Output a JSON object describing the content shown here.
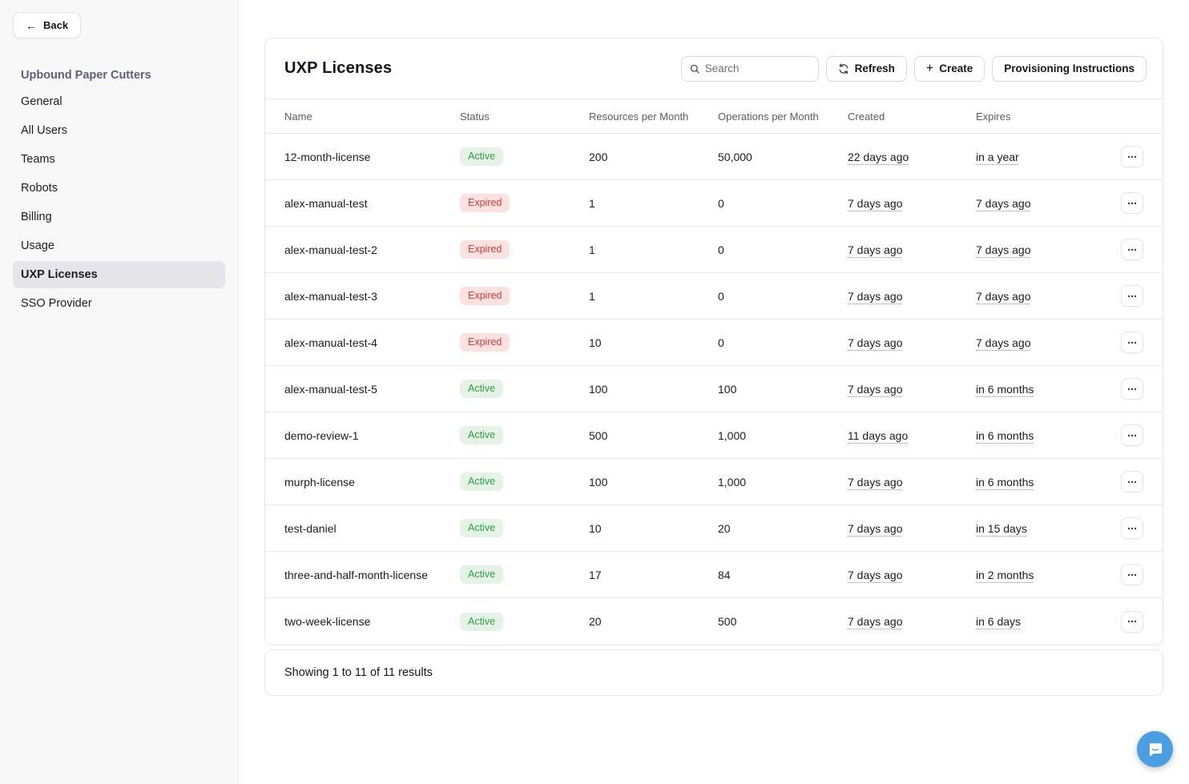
{
  "sidebar": {
    "back_label": "Back",
    "org_name": "Upbound Paper Cutters",
    "items": [
      {
        "label": "General",
        "active": false
      },
      {
        "label": "All Users",
        "active": false
      },
      {
        "label": "Teams",
        "active": false
      },
      {
        "label": "Robots",
        "active": false
      },
      {
        "label": "Billing",
        "active": false
      },
      {
        "label": "Usage",
        "active": false
      },
      {
        "label": "UXP Licenses",
        "active": true
      },
      {
        "label": "SSO Provider",
        "active": false
      }
    ]
  },
  "header": {
    "title": "UXP Licenses",
    "search_placeholder": "Search",
    "refresh_label": "Refresh",
    "create_label": "Create",
    "provisioning_label": "Provisioning Instructions"
  },
  "table": {
    "columns": [
      "Name",
      "Status",
      "Resources per Month",
      "Operations per Month",
      "Created",
      "Expires"
    ],
    "rows": [
      {
        "name": "12-month-license",
        "status": "Active",
        "resources": "200",
        "operations": "50,000",
        "created": "22 days ago",
        "expires": "in a year"
      },
      {
        "name": "alex-manual-test",
        "status": "Expired",
        "resources": "1",
        "operations": "0",
        "created": "7 days ago",
        "expires": "7 days ago"
      },
      {
        "name": "alex-manual-test-2",
        "status": "Expired",
        "resources": "1",
        "operations": "0",
        "created": "7 days ago",
        "expires": "7 days ago"
      },
      {
        "name": "alex-manual-test-3",
        "status": "Expired",
        "resources": "1",
        "operations": "0",
        "created": "7 days ago",
        "expires": "7 days ago"
      },
      {
        "name": "alex-manual-test-4",
        "status": "Expired",
        "resources": "10",
        "operations": "0",
        "created": "7 days ago",
        "expires": "7 days ago"
      },
      {
        "name": "alex-manual-test-5",
        "status": "Active",
        "resources": "100",
        "operations": "100",
        "created": "7 days ago",
        "expires": "in 6 months"
      },
      {
        "name": "demo-review-1",
        "status": "Active",
        "resources": "500",
        "operations": "1,000",
        "created": "11 days ago",
        "expires": "in 6 months"
      },
      {
        "name": "murph-license",
        "status": "Active",
        "resources": "100",
        "operations": "1,000",
        "created": "7 days ago",
        "expires": "in 6 months"
      },
      {
        "name": "test-daniel",
        "status": "Active",
        "resources": "10",
        "operations": "20",
        "created": "7 days ago",
        "expires": "in 15 days"
      },
      {
        "name": "three-and-half-month-license",
        "status": "Active",
        "resources": "17",
        "operations": "84",
        "created": "7 days ago",
        "expires": "in 2 months"
      },
      {
        "name": "two-week-license",
        "status": "Active",
        "resources": "20",
        "operations": "500",
        "created": "7 days ago",
        "expires": "in 6 days"
      }
    ],
    "footer": "Showing 1 to 11 of 11 results"
  },
  "colors": {
    "active_badge_bg": "#e4f3e6",
    "active_badge_text": "#2e9e44",
    "expired_badge_bg": "#fce1e1",
    "expired_badge_text": "#d83c3c",
    "org_title_text": "#5e5e7a",
    "chat_button_bg": "#4b9fe1"
  },
  "icons": {
    "back_arrow": "←",
    "plus": "+"
  }
}
